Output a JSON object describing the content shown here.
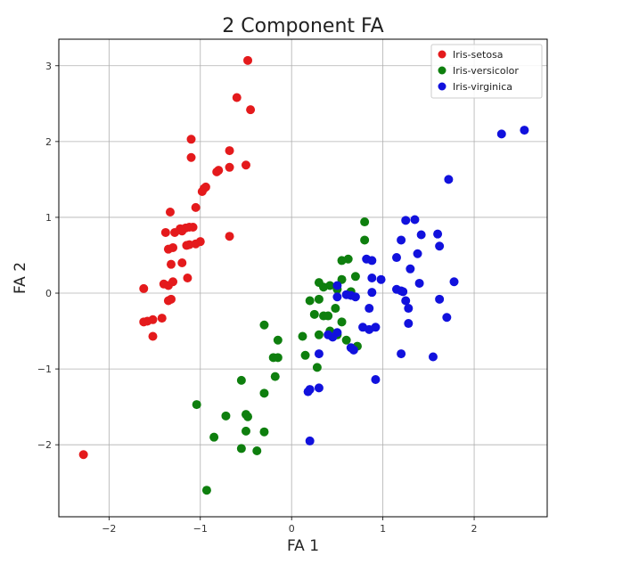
{
  "chart_data": {
    "type": "scatter",
    "title": "2 Component FA",
    "xlabel": "FA 1",
    "ylabel": "FA 2",
    "xlim": [
      -2.55,
      2.8
    ],
    "ylim": [
      -2.95,
      3.35
    ],
    "xticks": [
      -2,
      -1,
      0,
      1,
      2
    ],
    "yticks": [
      -2,
      -1,
      0,
      1,
      2,
      3
    ],
    "xtick_labels": [
      "−2",
      "−1",
      "0",
      "1",
      "2"
    ],
    "ytick_labels": [
      "−2",
      "−1",
      "0",
      "1",
      "2",
      "3"
    ],
    "grid": true,
    "legend_position": "top-right",
    "series": [
      {
        "name": "Iris-setosa",
        "color": "#e41a1c",
        "points": [
          [
            -0.48,
            3.07
          ],
          [
            -0.6,
            2.58
          ],
          [
            -0.45,
            2.42
          ],
          [
            -1.1,
            2.03
          ],
          [
            -0.68,
            1.88
          ],
          [
            -1.1,
            1.79
          ],
          [
            -0.5,
            1.69
          ],
          [
            -0.68,
            1.66
          ],
          [
            -0.8,
            1.62
          ],
          [
            -0.82,
            1.6
          ],
          [
            -0.94,
            1.4
          ],
          [
            -0.96,
            1.38
          ],
          [
            -0.98,
            1.34
          ],
          [
            -1.05,
            1.13
          ],
          [
            -1.33,
            1.07
          ],
          [
            -1.16,
            0.86
          ],
          [
            -1.12,
            0.87
          ],
          [
            -1.08,
            0.87
          ],
          [
            -1.22,
            0.85
          ],
          [
            -1.2,
            0.82
          ],
          [
            -1.38,
            0.8
          ],
          [
            -1.28,
            0.8
          ],
          [
            -0.68,
            0.75
          ],
          [
            -1.0,
            0.68
          ],
          [
            -1.05,
            0.65
          ],
          [
            -1.12,
            0.64
          ],
          [
            -1.15,
            0.63
          ],
          [
            -1.3,
            0.6
          ],
          [
            -1.35,
            0.58
          ],
          [
            -1.2,
            0.4
          ],
          [
            -1.32,
            0.38
          ],
          [
            -1.14,
            0.2
          ],
          [
            -1.3,
            0.15
          ],
          [
            -1.4,
            0.12
          ],
          [
            -1.35,
            0.1
          ],
          [
            -1.62,
            0.06
          ],
          [
            -1.32,
            -0.08
          ],
          [
            -1.35,
            -0.1
          ],
          [
            -1.42,
            -0.33
          ],
          [
            -1.52,
            -0.35
          ],
          [
            -1.58,
            -0.37
          ],
          [
            -1.62,
            -0.38
          ],
          [
            -1.52,
            -0.57
          ],
          [
            -2.28,
            -2.13
          ]
        ]
      },
      {
        "name": "Iris-versicolor",
        "color": "#0e7f0e",
        "points": [
          [
            0.8,
            0.94
          ],
          [
            0.8,
            0.7
          ],
          [
            0.62,
            0.45
          ],
          [
            0.55,
            0.43
          ],
          [
            0.7,
            0.22
          ],
          [
            0.55,
            0.18
          ],
          [
            0.3,
            0.14
          ],
          [
            0.42,
            0.1
          ],
          [
            0.35,
            0.08
          ],
          [
            0.5,
            0.05
          ],
          [
            0.65,
            0.02
          ],
          [
            0.3,
            -0.08
          ],
          [
            0.2,
            -0.1
          ],
          [
            0.48,
            -0.2
          ],
          [
            0.25,
            -0.28
          ],
          [
            0.35,
            -0.3
          ],
          [
            0.4,
            -0.3
          ],
          [
            0.55,
            -0.38
          ],
          [
            0.42,
            -0.5
          ],
          [
            0.5,
            -0.55
          ],
          [
            0.3,
            -0.55
          ],
          [
            0.12,
            -0.57
          ],
          [
            -0.3,
            -0.42
          ],
          [
            -0.15,
            -0.62
          ],
          [
            0.6,
            -0.62
          ],
          [
            0.72,
            -0.7
          ],
          [
            -0.2,
            -0.85
          ],
          [
            -0.15,
            -0.85
          ],
          [
            0.15,
            -0.82
          ],
          [
            0.28,
            -0.98
          ],
          [
            -0.18,
            -1.1
          ],
          [
            -0.55,
            -1.15
          ],
          [
            -0.3,
            -1.32
          ],
          [
            -1.04,
            -1.47
          ],
          [
            -0.5,
            -1.6
          ],
          [
            -0.48,
            -1.63
          ],
          [
            -0.72,
            -1.62
          ],
          [
            -0.5,
            -1.82
          ],
          [
            -0.3,
            -1.83
          ],
          [
            -0.85,
            -1.9
          ],
          [
            -0.55,
            -2.05
          ],
          [
            -0.38,
            -2.08
          ],
          [
            -0.93,
            -2.6
          ]
        ]
      },
      {
        "name": "Iris-virginica",
        "color": "#1111dd",
        "points": [
          [
            2.55,
            2.15
          ],
          [
            2.3,
            2.1
          ],
          [
            1.72,
            1.5
          ],
          [
            1.35,
            0.97
          ],
          [
            1.25,
            0.96
          ],
          [
            1.42,
            0.77
          ],
          [
            1.6,
            0.78
          ],
          [
            1.2,
            0.7
          ],
          [
            1.62,
            0.62
          ],
          [
            1.38,
            0.52
          ],
          [
            1.15,
            0.47
          ],
          [
            0.82,
            0.45
          ],
          [
            0.88,
            0.43
          ],
          [
            1.3,
            0.32
          ],
          [
            0.88,
            0.2
          ],
          [
            0.98,
            0.18
          ],
          [
            1.78,
            0.15
          ],
          [
            0.5,
            0.1
          ],
          [
            1.4,
            0.13
          ],
          [
            1.15,
            0.05
          ],
          [
            1.2,
            0.03
          ],
          [
            1.22,
            0.02
          ],
          [
            0.88,
            0.01
          ],
          [
            0.6,
            -0.02
          ],
          [
            0.65,
            -0.03
          ],
          [
            0.7,
            -0.05
          ],
          [
            0.5,
            -0.05
          ],
          [
            1.25,
            -0.1
          ],
          [
            1.62,
            -0.08
          ],
          [
            0.85,
            -0.2
          ],
          [
            1.28,
            -0.2
          ],
          [
            1.7,
            -0.32
          ],
          [
            0.78,
            -0.45
          ],
          [
            0.85,
            -0.48
          ],
          [
            0.92,
            -0.45
          ],
          [
            1.28,
            -0.4
          ],
          [
            0.5,
            -0.52
          ],
          [
            0.4,
            -0.55
          ],
          [
            0.45,
            -0.58
          ],
          [
            0.65,
            -0.72
          ],
          [
            0.68,
            -0.75
          ],
          [
            0.3,
            -0.8
          ],
          [
            1.2,
            -0.8
          ],
          [
            1.55,
            -0.84
          ],
          [
            0.92,
            -1.14
          ],
          [
            0.3,
            -1.25
          ],
          [
            0.2,
            -1.27
          ],
          [
            0.18,
            -1.3
          ],
          [
            0.2,
            -1.95
          ]
        ]
      }
    ]
  }
}
